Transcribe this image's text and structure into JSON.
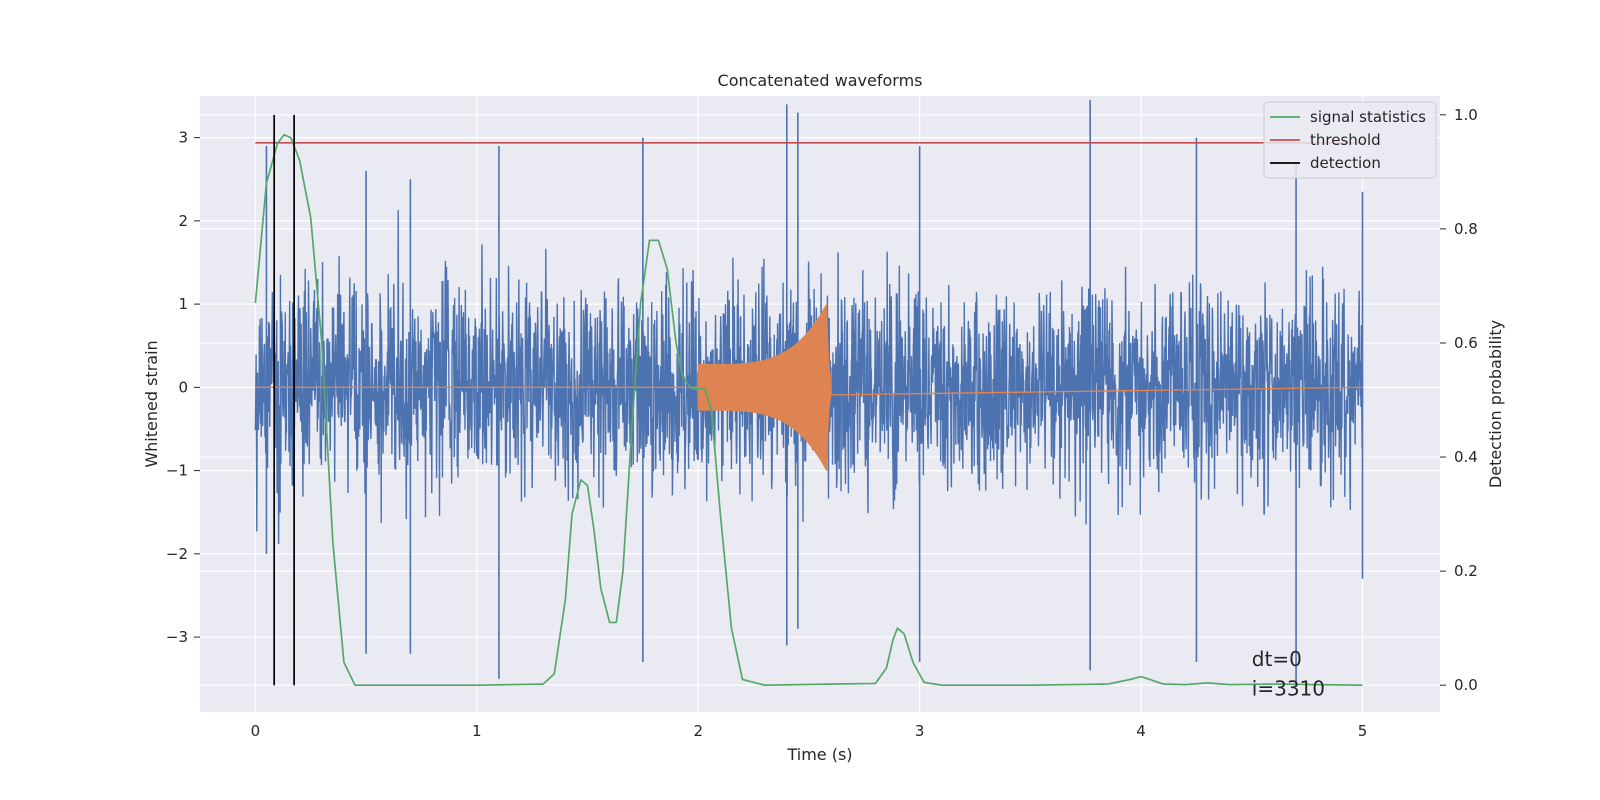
{
  "chart_data": {
    "type": "line",
    "title": "Concatenated waveforms",
    "xlabel": "Time (s)",
    "ylabel": "Whitened strain",
    "y2label": "Detection probability",
    "xlim": [
      -0.25,
      5.35
    ],
    "ylim": [
      -3.9,
      3.5
    ],
    "y2lim": [
      -0.047,
      1.033
    ],
    "xticks": [
      0,
      1,
      2,
      3,
      4,
      5
    ],
    "xtick_labels": [
      "0",
      "1",
      "2",
      "3",
      "4",
      "5"
    ],
    "yticks": [
      -3,
      -2,
      -1,
      0,
      1,
      2,
      3
    ],
    "ytick_labels": [
      "−3",
      "−2",
      "−1",
      "0",
      "1",
      "2",
      "3"
    ],
    "y2ticks": [
      0.0,
      0.2,
      0.4,
      0.6,
      0.8,
      1.0
    ],
    "y2tick_labels": [
      "0.0",
      "0.2",
      "0.4",
      "0.6",
      "0.8",
      "1.0"
    ],
    "grid": true,
    "legend_position": "top-right",
    "legend": [
      "signal statistics",
      "threshold",
      "detection"
    ],
    "annotation_lines": [
      "dt=0",
      "i=3310"
    ],
    "colors": {
      "noise": "#4c72b0",
      "injection": "#dd8452",
      "statistics": "#55a868",
      "threshold": "#c44e52",
      "detection": "#000000",
      "background": "#eaeaf2",
      "grid": "#ffffff"
    },
    "series": [
      {
        "name": "whitened strain (noise)",
        "axis": "left",
        "x_range": [
          0,
          5
        ],
        "envelope_peaks": [
          [
            0.05,
            2.9,
            -2.0
          ],
          [
            0.5,
            2.6,
            -3.2
          ],
          [
            0.7,
            2.5,
            -3.2
          ],
          [
            1.1,
            2.9,
            -3.5
          ],
          [
            1.75,
            3.0,
            -3.3
          ],
          [
            2.4,
            3.4,
            -3.1
          ],
          [
            2.45,
            3.3,
            -2.9
          ],
          [
            3.0,
            2.9,
            -3.3
          ],
          [
            3.77,
            3.45,
            -3.4
          ],
          [
            4.25,
            3.0,
            -3.3
          ],
          [
            4.7,
            2.7,
            -3.6
          ],
          [
            5.0,
            2.35,
            -2.3
          ]
        ]
      },
      {
        "name": "injected waveform",
        "axis": "left",
        "x_range": [
          2.0,
          2.6
        ],
        "amplitude_start": 0.28,
        "amplitude_peak": 1.0,
        "peak_time": 2.58
      },
      {
        "name": "signal statistics",
        "axis": "right",
        "x": [
          0.0,
          0.05,
          0.1,
          0.13,
          0.16,
          0.2,
          0.25,
          0.3,
          0.35,
          0.4,
          0.45,
          0.6,
          1.0,
          1.3,
          1.35,
          1.4,
          1.43,
          1.47,
          1.5,
          1.53,
          1.56,
          1.6,
          1.63,
          1.66,
          1.7,
          1.74,
          1.78,
          1.82,
          1.86,
          1.9,
          1.93,
          1.97,
          2.0,
          2.03,
          2.06,
          2.1,
          2.15,
          2.2,
          2.3,
          2.6,
          2.8,
          2.85,
          2.88,
          2.9,
          2.93,
          2.97,
          3.02,
          3.1,
          3.5,
          3.85,
          3.95,
          4.0,
          4.04,
          4.1,
          4.2,
          4.3,
          4.4,
          4.6,
          5.0
        ],
        "values": [
          0.67,
          0.88,
          0.95,
          0.965,
          0.96,
          0.92,
          0.82,
          0.6,
          0.25,
          0.04,
          0.0,
          0.0,
          0.0,
          0.002,
          0.02,
          0.15,
          0.3,
          0.36,
          0.35,
          0.27,
          0.17,
          0.11,
          0.11,
          0.2,
          0.45,
          0.67,
          0.78,
          0.78,
          0.73,
          0.6,
          0.54,
          0.52,
          0.52,
          0.52,
          0.48,
          0.3,
          0.1,
          0.01,
          0.0,
          0.002,
          0.003,
          0.03,
          0.08,
          0.1,
          0.09,
          0.04,
          0.005,
          0.0,
          0.0,
          0.002,
          0.01,
          0.015,
          0.01,
          0.002,
          0.001,
          0.004,
          0.001,
          0.002,
          0.0
        ]
      },
      {
        "name": "threshold",
        "axis": "right",
        "x": [
          0,
          5
        ],
        "values": [
          0.951,
          0.951
        ]
      },
      {
        "name": "detection",
        "axis": "right",
        "type": "vlines",
        "x": [
          0.085,
          0.175
        ],
        "range": [
          0,
          1.0
        ]
      }
    ]
  }
}
